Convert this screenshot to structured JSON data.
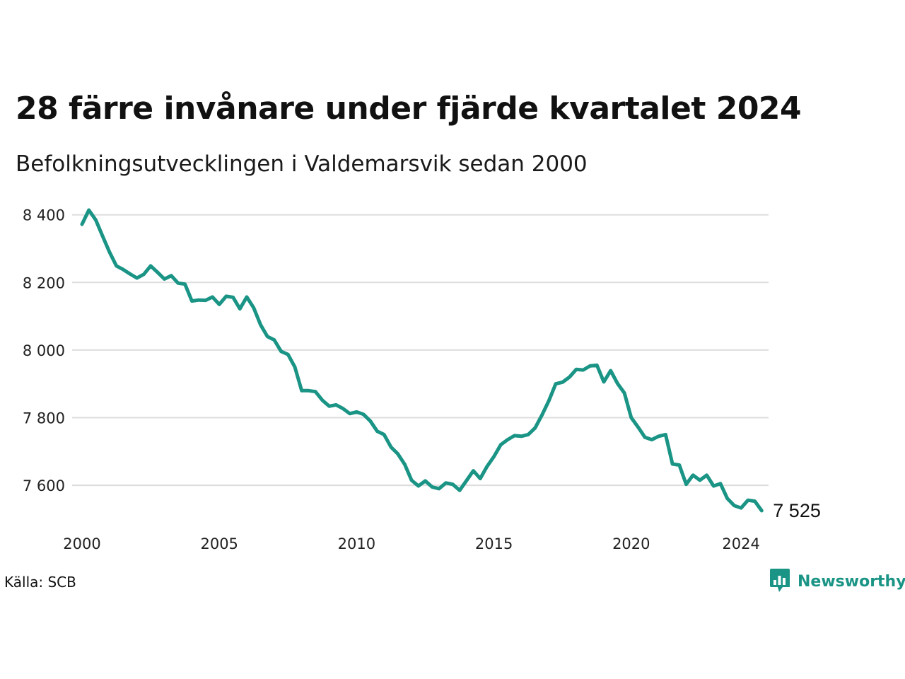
{
  "header": {
    "title": "28 färre invånare under fjärde kvartalet 2024",
    "subtitle": "Befolkningsutvecklingen i Valdemarsvik sedan 2000"
  },
  "footer": {
    "source": "Källa: SCB",
    "brand": "Newsworthy"
  },
  "colors": {
    "line": "#1a9485",
    "grid": "#dddddd",
    "brand": "#1a9485"
  },
  "icons": {
    "brand_logo": "bar-chart-speech-bubble-icon"
  },
  "chart_data": {
    "type": "line",
    "title": "28 färre invånare under fjärde kvartalet 2024",
    "subtitle": "Befolkningsutvecklingen i Valdemarsvik sedan 2000",
    "xlabel": "",
    "ylabel": "",
    "x_ticks": [
      "2000",
      "2005",
      "2010",
      "2015",
      "2020",
      "2024"
    ],
    "y_ticks": [
      "8 400",
      "8 200",
      "8 000",
      "7 800",
      "7 600"
    ],
    "y_tick_values": [
      8400,
      8200,
      8000,
      7800,
      7600
    ],
    "x_range": [
      2000.0,
      2025.0
    ],
    "ylim": [
      7525,
      8414
    ],
    "grid": "horizontal",
    "end_label": "7 525",
    "series": [
      {
        "x": [
          "2000-Q1",
          "2000-Q2",
          "2000-Q3",
          "2000-Q4",
          "2001-Q1",
          "2001-Q2",
          "2001-Q3",
          "2001-Q4",
          "2002-Q1",
          "2002-Q2",
          "2002-Q3",
          "2002-Q4",
          "2003-Q1",
          "2003-Q2",
          "2003-Q3",
          "2003-Q4",
          "2004-Q1",
          "2004-Q2",
          "2004-Q3",
          "2004-Q4",
          "2005-Q1",
          "2005-Q2",
          "2005-Q3",
          "2005-Q4",
          "2006-Q1",
          "2006-Q2",
          "2006-Q3",
          "2006-Q4",
          "2007-Q1",
          "2007-Q2",
          "2007-Q3",
          "2007-Q4",
          "2008-Q1",
          "2008-Q2",
          "2008-Q3",
          "2008-Q4",
          "2009-Q1",
          "2009-Q2",
          "2009-Q3",
          "2009-Q4",
          "2010-Q1",
          "2010-Q2",
          "2010-Q3",
          "2010-Q4",
          "2011-Q1",
          "2011-Q2",
          "2011-Q3",
          "2011-Q4",
          "2012-Q1",
          "2012-Q2",
          "2012-Q3",
          "2012-Q4",
          "2013-Q1",
          "2013-Q2",
          "2013-Q3",
          "2013-Q4",
          "2014-Q1",
          "2014-Q2",
          "2014-Q3",
          "2014-Q4",
          "2015-Q1",
          "2015-Q2",
          "2015-Q3",
          "2015-Q4",
          "2016-Q1",
          "2016-Q2",
          "2016-Q3",
          "2016-Q4",
          "2017-Q1",
          "2017-Q2",
          "2017-Q3",
          "2017-Q4",
          "2018-Q1",
          "2018-Q2",
          "2018-Q3",
          "2018-Q4",
          "2019-Q1",
          "2019-Q2",
          "2019-Q3",
          "2019-Q4",
          "2020-Q1",
          "2020-Q2",
          "2020-Q3",
          "2020-Q4",
          "2021-Q1",
          "2021-Q2",
          "2021-Q3",
          "2021-Q4",
          "2022-Q1",
          "2022-Q2",
          "2022-Q3",
          "2022-Q4",
          "2023-Q1",
          "2023-Q2",
          "2023-Q3",
          "2023-Q4",
          "2024-Q1",
          "2024-Q2",
          "2024-Q3",
          "2024-Q4"
        ],
        "values": [
          8372,
          8414,
          8385,
          8337,
          8290,
          8249,
          8238,
          8225,
          8213,
          8224,
          8249,
          8230,
          8210,
          8220,
          8198,
          8195,
          8145,
          8148,
          8147,
          8157,
          8135,
          8159,
          8156,
          8122,
          8157,
          8125,
          8075,
          8040,
          8030,
          7996,
          7987,
          7950,
          7880,
          7880,
          7877,
          7852,
          7834,
          7838,
          7827,
          7812,
          7817,
          7810,
          7790,
          7760,
          7750,
          7713,
          7693,
          7662,
          7615,
          7598,
          7613,
          7595,
          7590,
          7607,
          7603,
          7585,
          7614,
          7643,
          7620,
          7656,
          7685,
          7720,
          7735,
          7747,
          7745,
          7750,
          7770,
          7808,
          7850,
          7900,
          7905,
          7920,
          7943,
          7941,
          7953,
          7955,
          7906,
          7939,
          7901,
          7873,
          7800,
          7772,
          7742,
          7735,
          7745,
          7750,
          7663,
          7660,
          7603,
          7630,
          7615,
          7630,
          7598,
          7605,
          7561,
          7540,
          7533,
          7556,
          7553,
          7525
        ]
      }
    ]
  }
}
